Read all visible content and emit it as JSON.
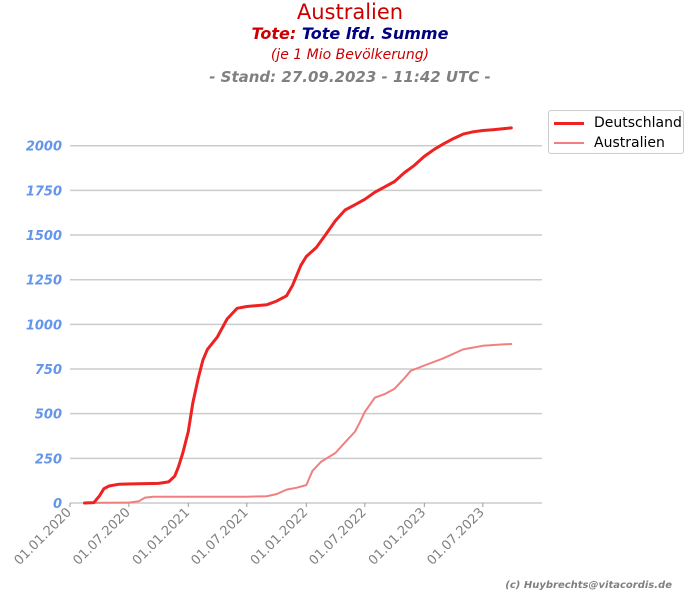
{
  "header": {
    "title": "Australien",
    "subtitle_label": "Tote:",
    "subtitle_value": "Tote lfd. Summe",
    "note": "(je 1 Mio Bevölkerung)",
    "stand": "- Stand: 27.09.2023 - 11:42 UTC -"
  },
  "credit": "(c) Huybrechts@vitacordis.de",
  "chart_data": {
    "type": "line",
    "title": "Australien",
    "xlabel": "",
    "ylabel": "",
    "xlim": [
      "2020-01-01",
      "2023-12-31"
    ],
    "ylim": [
      0,
      2200
    ],
    "y_ticks": [
      0,
      250,
      500,
      750,
      1000,
      1250,
      1500,
      1750,
      2000
    ],
    "x_ticks": [
      "01.01.2020",
      "01.07.2020",
      "01.01.2021",
      "01.07.2021",
      "01.01.2022",
      "01.07.2022",
      "01.01.2023",
      "01.07.2023"
    ],
    "grid": "horizontal",
    "legend": "top-right",
    "series": [
      {
        "name": "Deutschland",
        "color": "#ee2222",
        "points": [
          [
            "2020-02-15",
            0
          ],
          [
            "2020-03-15",
            2
          ],
          [
            "2020-04-01",
            40
          ],
          [
            "2020-04-15",
            80
          ],
          [
            "2020-05-01",
            95
          ],
          [
            "2020-06-01",
            105
          ],
          [
            "2020-08-01",
            108
          ],
          [
            "2020-10-01",
            110
          ],
          [
            "2020-11-01",
            118
          ],
          [
            "2020-11-20",
            150
          ],
          [
            "2020-12-01",
            200
          ],
          [
            "2020-12-15",
            280
          ],
          [
            "2021-01-01",
            400
          ],
          [
            "2021-01-15",
            560
          ],
          [
            "2021-02-01",
            700
          ],
          [
            "2021-02-15",
            800
          ],
          [
            "2021-03-01",
            860
          ],
          [
            "2021-04-01",
            930
          ],
          [
            "2021-05-01",
            1030
          ],
          [
            "2021-06-01",
            1090
          ],
          [
            "2021-07-01",
            1100
          ],
          [
            "2021-08-01",
            1105
          ],
          [
            "2021-09-01",
            1110
          ],
          [
            "2021-10-01",
            1130
          ],
          [
            "2021-11-01",
            1160
          ],
          [
            "2021-11-20",
            1220
          ],
          [
            "2021-12-15",
            1330
          ],
          [
            "2022-01-01",
            1380
          ],
          [
            "2022-02-01",
            1430
          ],
          [
            "2022-03-01",
            1500
          ],
          [
            "2022-04-01",
            1580
          ],
          [
            "2022-05-01",
            1640
          ],
          [
            "2022-06-01",
            1670
          ],
          [
            "2022-07-01",
            1700
          ],
          [
            "2022-08-01",
            1740
          ],
          [
            "2022-09-01",
            1770
          ],
          [
            "2022-10-01",
            1800
          ],
          [
            "2022-11-01",
            1850
          ],
          [
            "2022-12-01",
            1890
          ],
          [
            "2023-01-01",
            1940
          ],
          [
            "2023-02-01",
            1980
          ],
          [
            "2023-03-01",
            2010
          ],
          [
            "2023-04-01",
            2040
          ],
          [
            "2023-05-01",
            2065
          ],
          [
            "2023-06-01",
            2078
          ],
          [
            "2023-07-01",
            2085
          ],
          [
            "2023-08-01",
            2090
          ],
          [
            "2023-09-01",
            2095
          ],
          [
            "2023-09-27",
            2100
          ]
        ]
      },
      {
        "name": "Australien",
        "color": "#f08080",
        "points": [
          [
            "2020-02-15",
            0
          ],
          [
            "2020-04-01",
            1
          ],
          [
            "2020-07-01",
            2
          ],
          [
            "2020-08-01",
            10
          ],
          [
            "2020-08-20",
            30
          ],
          [
            "2020-09-15",
            35
          ],
          [
            "2021-01-01",
            35
          ],
          [
            "2021-07-01",
            35
          ],
          [
            "2021-09-01",
            38
          ],
          [
            "2021-10-01",
            50
          ],
          [
            "2021-11-01",
            75
          ],
          [
            "2021-12-01",
            85
          ],
          [
            "2022-01-01",
            100
          ],
          [
            "2022-01-20",
            180
          ],
          [
            "2022-02-15",
            230
          ],
          [
            "2022-04-01",
            280
          ],
          [
            "2022-05-01",
            340
          ],
          [
            "2022-06-01",
            400
          ],
          [
            "2022-06-15",
            450
          ],
          [
            "2022-07-01",
            510
          ],
          [
            "2022-08-01",
            590
          ],
          [
            "2022-09-01",
            610
          ],
          [
            "2022-10-01",
            640
          ],
          [
            "2022-11-01",
            700
          ],
          [
            "2022-11-20",
            740
          ],
          [
            "2023-01-01",
            770
          ],
          [
            "2023-03-01",
            810
          ],
          [
            "2023-05-01",
            860
          ],
          [
            "2023-07-01",
            880
          ],
          [
            "2023-09-01",
            888
          ],
          [
            "2023-09-27",
            890
          ]
        ]
      }
    ]
  }
}
